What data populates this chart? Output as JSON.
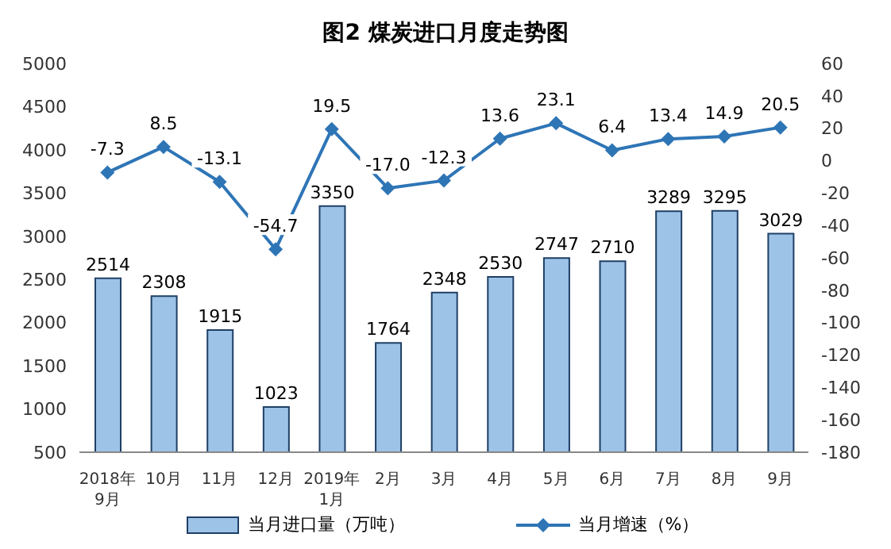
{
  "chart_data": {
    "type": "bar",
    "title": "图2  煤炭进口月度走势图",
    "categories": [
      "2018年\n9月",
      "10月",
      "11月",
      "12月",
      "2019年\n1月",
      "2月",
      "3月",
      "4月",
      "5月",
      "6月",
      "7月",
      "8月",
      "9月"
    ],
    "series": [
      {
        "name": "当月进口量（万吨）",
        "color": "#9dc3e6",
        "values": [
          2514,
          2308,
          1915,
          1023,
          3350,
          1764,
          2348,
          2530,
          2747,
          2710,
          3289,
          3295,
          3029
        ]
      },
      {
        "name": "当月增速（%）",
        "type": "line",
        "axis": "y2",
        "color": "#2e75b6",
        "values": [
          -7.3,
          8.5,
          -13.1,
          -54.7,
          19.5,
          -17.0,
          -12.3,
          13.6,
          23.1,
          6.4,
          13.4,
          14.9,
          20.5
        ],
        "value_labels": [
          "-7.3",
          "8.5",
          "-13.1",
          "-54.7",
          "19.5",
          "-17.0",
          "-12.3",
          "13.6",
          "23.1",
          "6.4",
          "13.4",
          "14.9",
          "20.5"
        ]
      }
    ],
    "ylim": [
      500,
      5000
    ],
    "yticks": [
      500,
      1000,
      1500,
      2000,
      2500,
      3000,
      3500,
      4000,
      4500,
      5000
    ],
    "y2lim": [
      -180,
      60
    ],
    "y2ticks": [
      -180,
      -160,
      -140,
      -120,
      -100,
      -80,
      -60,
      -40,
      -20,
      0,
      20,
      40,
      60
    ],
    "data_labels": true,
    "marker": "diamond",
    "legend": "bottom",
    "grid": false
  }
}
